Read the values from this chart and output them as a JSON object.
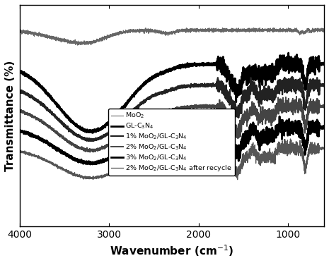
{
  "xlabel": "Wavenumber (cm$^{-1}$)",
  "ylabel": "Transmittance (%)",
  "xlim": [
    4000,
    600
  ],
  "legend_entries": [
    "MoO$_2$",
    "GL-C$_3$N$_4$",
    "1% MoO$_2$/GL-C$_3$N$_4$",
    "2% MoO$_2$/GL-C$_3$N$_4$",
    "3% MoO$_2$/GL-C$_3$N$_4$",
    "2% MoO$_2$/GL-C$_3$N$_4$ after recycle"
  ],
  "line_colors": [
    "#666666",
    "#000000",
    "#222222",
    "#444444",
    "#000000",
    "#555555"
  ],
  "line_widths": [
    0.8,
    2.0,
    1.6,
    1.4,
    2.0,
    0.9
  ],
  "background_color": "#ffffff",
  "font_size": 11
}
